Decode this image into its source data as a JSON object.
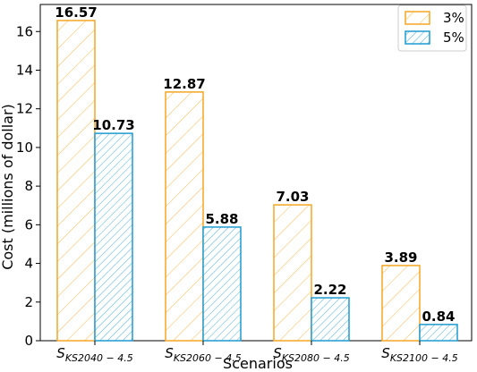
{
  "chart_data": {
    "type": "bar",
    "categories": [
      {
        "base": "S",
        "sub": "KS2040 − 4.5"
      },
      {
        "base": "S",
        "sub": "KS2060 − 4.5"
      },
      {
        "base": "S",
        "sub": "KS2080 − 4.5"
      },
      {
        "base": "S",
        "sub": "KS2100 − 4.5"
      }
    ],
    "series": [
      {
        "name": "3%",
        "values": [
          16.57,
          12.87,
          7.03,
          3.89
        ],
        "labels": [
          "16.57",
          "12.87",
          "7.03",
          "3.89"
        ],
        "color": "#f5a623",
        "hatch": "//"
      },
      {
        "name": "5%",
        "values": [
          10.73,
          5.88,
          2.22,
          0.84
        ],
        "labels": [
          "10.73",
          "5.88",
          "2.22",
          "0.84"
        ],
        "color": "#1f9bd1",
        "hatch": "////"
      }
    ],
    "xlabel": "Scenarios",
    "ylabel": "Cost (millions of dollar)",
    "ylim": [
      0,
      17.4
    ],
    "yticks": [
      0,
      2,
      4,
      6,
      8,
      10,
      12,
      14,
      16
    ],
    "ytick_labels": [
      "0",
      "2",
      "4",
      "6",
      "8",
      "10",
      "12",
      "14",
      "16"
    ],
    "grid": false,
    "legend_position": "top-right"
  }
}
